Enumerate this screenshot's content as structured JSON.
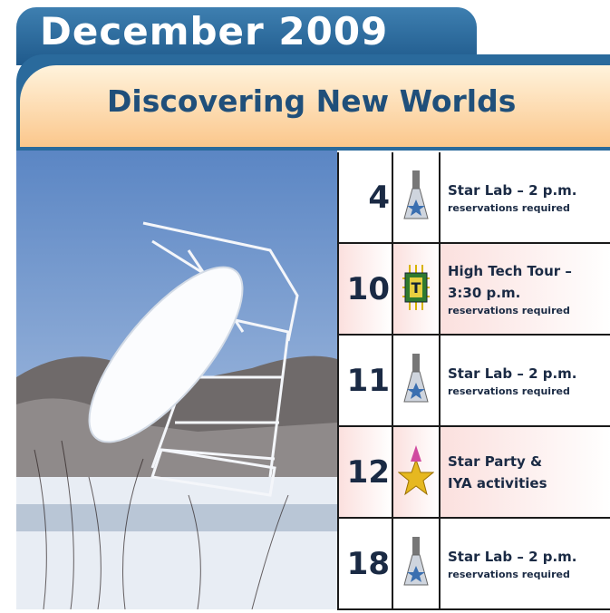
{
  "header": {
    "title": "December 2009",
    "subtitle": "Discovering New Worlds"
  },
  "events": [
    {
      "day": "4",
      "lines": [
        "Star Lab – 2 p.m."
      ],
      "note": "reservations required"
    },
    {
      "day": "10",
      "lines": [
        "High Tech Tour –",
        "3:30 p.m."
      ],
      "note": "reservations required"
    },
    {
      "day": "11",
      "lines": [
        "Star Lab – 2 p.m."
      ],
      "note": "reservations required"
    },
    {
      "day": "12",
      "lines": [
        "Star Party &",
        "IYA activities"
      ]
    },
    {
      "day": "18",
      "lines": [
        "Star Lab – 2 p.m."
      ],
      "note": "reservations required"
    }
  ]
}
